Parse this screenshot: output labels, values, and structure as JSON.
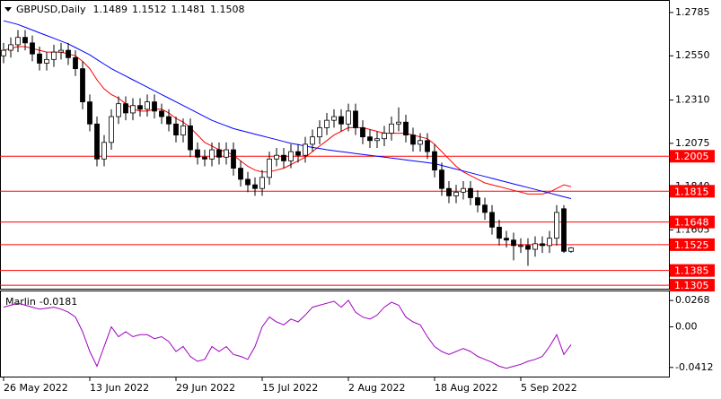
{
  "chart_data": [
    {
      "type": "candlestick",
      "symbol": "GBPUSD,Daily",
      "xlim": [
        -0.5,
        92.75
      ],
      "ylim": [
        1.1286,
        1.2848
      ],
      "xticks": [
        {
          "value": 0,
          "label": "26 May 2022"
        },
        {
          "value": 12,
          "label": "13 Jun 2022"
        },
        {
          "value": 24,
          "label": "29 Jun 2022"
        },
        {
          "value": 36,
          "label": "15 Jul 2022"
        },
        {
          "value": 48,
          "label": "2 Aug 2022"
        },
        {
          "value": 60,
          "label": "18 Aug 2022"
        },
        {
          "value": 72,
          "label": "5 Sep 2022"
        }
      ],
      "yticks": [
        1.2785,
        {
          "value": 1.255,
          "label": "1.2550"
        },
        {
          "value": 1.231,
          "label": "1.2310"
        },
        1.2075,
        {
          "value": 1.184,
          "label": "1.1840"
        },
        1.1605
      ],
      "open": [
        1.255,
        1.258,
        1.261,
        1.265,
        1.262,
        1.256,
        1.251,
        1.253,
        1.257,
        1.258,
        1.254,
        1.248,
        1.23,
        1.218,
        1.199,
        1.208,
        1.222,
        1.229,
        1.224,
        1.228,
        1.226,
        1.23,
        1.225,
        1.222,
        1.218,
        1.212,
        1.217,
        1.204,
        1.2,
        1.199,
        1.204,
        1.2,
        1.204,
        1.194,
        1.188,
        1.185,
        1.183,
        1.189,
        1.199,
        1.201,
        1.198,
        1.203,
        1.201,
        1.207,
        1.211,
        1.216,
        1.22,
        1.222,
        1.218,
        1.225,
        1.216,
        1.211,
        1.209,
        1.21,
        1.213,
        1.218,
        1.219,
        1.212,
        1.207,
        1.209,
        1.203,
        1.193,
        1.183,
        1.179,
        1.181,
        1.183,
        1.178,
        1.174,
        1.17,
        1.162,
        1.156,
        1.155,
        1.152,
        1.152,
        1.15,
        1.153,
        1.152,
        1.156,
        1.172,
        1.1489
      ],
      "high": [
        1.262,
        1.265,
        1.269,
        1.269,
        1.266,
        1.26,
        1.257,
        1.261,
        1.262,
        1.262,
        1.258,
        1.252,
        1.234,
        1.222,
        1.212,
        1.226,
        1.233,
        1.233,
        1.232,
        1.232,
        1.234,
        1.234,
        1.229,
        1.226,
        1.222,
        1.221,
        1.221,
        1.208,
        1.204,
        1.208,
        1.208,
        1.208,
        1.208,
        1.198,
        1.192,
        1.189,
        1.193,
        1.203,
        1.205,
        1.205,
        1.207,
        1.207,
        1.211,
        1.215,
        1.22,
        1.224,
        1.226,
        1.226,
        1.229,
        1.229,
        1.22,
        1.215,
        1.214,
        1.217,
        1.222,
        1.227,
        1.223,
        1.216,
        1.213,
        1.213,
        1.207,
        1.197,
        1.187,
        1.185,
        1.187,
        1.187,
        1.182,
        1.178,
        1.174,
        1.166,
        1.16,
        1.159,
        1.156,
        1.156,
        1.157,
        1.157,
        1.16,
        1.174,
        1.174,
        1.1512
      ],
      "low": [
        1.251,
        1.254,
        1.257,
        1.258,
        1.252,
        1.247,
        1.247,
        1.249,
        1.253,
        1.25,
        1.244,
        1.226,
        1.214,
        1.195,
        1.195,
        1.204,
        1.218,
        1.22,
        1.22,
        1.222,
        1.222,
        1.221,
        1.218,
        1.214,
        1.208,
        1.208,
        1.2,
        1.196,
        1.195,
        1.195,
        1.196,
        1.196,
        1.19,
        1.184,
        1.181,
        1.179,
        1.179,
        1.185,
        1.195,
        1.194,
        1.194,
        1.197,
        1.197,
        1.203,
        1.207,
        1.212,
        1.216,
        1.214,
        1.214,
        1.212,
        1.207,
        1.205,
        1.205,
        1.206,
        1.209,
        1.214,
        1.208,
        1.203,
        1.203,
        1.199,
        1.189,
        1.179,
        1.175,
        1.175,
        1.177,
        1.174,
        1.17,
        1.166,
        1.158,
        1.152,
        1.151,
        1.144,
        1.148,
        1.141,
        1.146,
        1.148,
        1.148,
        1.152,
        1.148,
        1.1481
      ],
      "close": [
        1.258,
        1.261,
        1.265,
        1.262,
        1.256,
        1.251,
        1.253,
        1.257,
        1.258,
        1.254,
        1.248,
        1.23,
        1.218,
        1.199,
        1.208,
        1.222,
        1.229,
        1.224,
        1.228,
        1.226,
        1.23,
        1.225,
        1.222,
        1.218,
        1.212,
        1.217,
        1.204,
        1.2,
        1.199,
        1.204,
        1.2,
        1.204,
        1.194,
        1.188,
        1.185,
        1.183,
        1.189,
        1.199,
        1.201,
        1.198,
        1.203,
        1.201,
        1.207,
        1.211,
        1.216,
        1.22,
        1.222,
        1.218,
        1.225,
        1.216,
        1.211,
        1.209,
        1.21,
        1.213,
        1.218,
        1.219,
        1.212,
        1.207,
        1.209,
        1.203,
        1.193,
        1.183,
        1.179,
        1.181,
        1.183,
        1.178,
        1.174,
        1.17,
        1.162,
        1.156,
        1.155,
        1.152,
        1.152,
        1.15,
        1.153,
        1.152,
        1.156,
        1.17,
        1.1489,
        1.1508
      ],
      "series": [
        {
          "color": "#ff0000",
          "values": [
            1.258,
            1.259,
            1.26,
            1.26,
            1.259,
            1.258,
            1.257,
            1.257,
            1.257,
            1.256,
            1.255,
            1.252,
            1.248,
            1.242,
            1.237,
            1.234,
            1.232,
            1.229,
            1.226,
            1.225,
            1.225,
            1.226,
            1.226,
            1.224,
            1.221,
            1.219,
            1.216,
            1.212,
            1.208,
            1.206,
            1.204,
            1.203,
            1.201,
            1.198,
            1.195,
            1.193,
            1.192,
            1.192,
            1.193,
            1.194,
            1.196,
            1.198,
            1.2,
            1.203,
            1.206,
            1.209,
            1.212,
            1.214,
            1.216,
            1.216,
            1.216,
            1.215,
            1.214,
            1.213,
            1.213,
            1.213,
            1.213,
            1.212,
            1.211,
            1.21,
            1.207,
            1.203,
            1.199,
            1.195,
            1.192,
            1.19,
            1.188,
            1.186,
            1.185,
            1.184,
            1.183,
            1.182,
            1.181,
            1.18,
            1.18,
            1.18,
            1.181,
            1.183,
            1.185,
            1.184
          ]
        },
        {
          "color": "#0000ff",
          "values": [
            1.274,
            1.273,
            1.272,
            1.2705,
            1.269,
            1.2675,
            1.266,
            1.2645,
            1.263,
            1.2615,
            1.2595,
            1.2575,
            1.2555,
            1.253,
            1.2505,
            1.248,
            1.246,
            1.244,
            1.242,
            1.24,
            1.238,
            1.236,
            1.234,
            1.232,
            1.23,
            1.228,
            1.226,
            1.224,
            1.222,
            1.22,
            1.2185,
            1.217,
            1.2155,
            1.2145,
            1.2135,
            1.2125,
            1.2115,
            1.2105,
            1.2095,
            1.2085,
            1.2075,
            1.2068,
            1.206,
            1.2053,
            1.2047,
            1.204,
            1.2035,
            1.203,
            1.2025,
            1.202,
            1.2015,
            1.201,
            1.2005,
            1.2,
            1.1995,
            1.199,
            1.1985,
            1.198,
            1.1975,
            1.197,
            1.1965,
            1.1955,
            1.1945,
            1.1935,
            1.1925,
            1.1915,
            1.1905,
            1.1895,
            1.1885,
            1.1875,
            1.1865,
            1.1855,
            1.1845,
            1.1835,
            1.1825,
            1.1815,
            1.1805,
            1.1795,
            1.1785,
            1.1775
          ]
        }
      ],
      "levels": {
        "color": "#ff0000",
        "values": [
          1.2005,
          1.1815,
          1.1648,
          1.1525,
          1.1385,
          1.1305
        ]
      }
    },
    {
      "type": "line",
      "title": "Marlin",
      "color": "#a000c0",
      "xlim": [
        -0.5,
        92.75
      ],
      "ylim": [
        -0.0505,
        0.036
      ],
      "yticks": [
        0.0268,
        {
          "value": 0,
          "label": "0.00"
        },
        -0.0412
      ],
      "values": [
        0.02,
        0.022,
        0.024,
        0.022,
        0.02,
        0.018,
        0.019,
        0.02,
        0.018,
        0.015,
        0.01,
        -0.005,
        -0.025,
        -0.04,
        -0.02,
        0.0,
        -0.01,
        -0.005,
        -0.01,
        -0.008,
        -0.008,
        -0.012,
        -0.01,
        -0.015,
        -0.025,
        -0.02,
        -0.03,
        -0.035,
        -0.033,
        -0.02,
        -0.025,
        -0.02,
        -0.028,
        -0.03,
        -0.033,
        -0.02,
        0.0,
        0.01,
        0.005,
        0.002,
        0.008,
        0.005,
        0.012,
        0.02,
        0.022,
        0.024,
        0.026,
        0.02,
        0.027,
        0.015,
        0.01,
        0.008,
        0.012,
        0.02,
        0.025,
        0.022,
        0.01,
        0.005,
        0.002,
        -0.01,
        -0.02,
        -0.025,
        -0.028,
        -0.025,
        -0.022,
        -0.025,
        -0.03,
        -0.033,
        -0.036,
        -0.04,
        -0.042,
        -0.04,
        -0.038,
        -0.035,
        -0.033,
        -0.03,
        -0.02,
        -0.008,
        -0.028,
        -0.0181
      ]
    }
  ]
}
